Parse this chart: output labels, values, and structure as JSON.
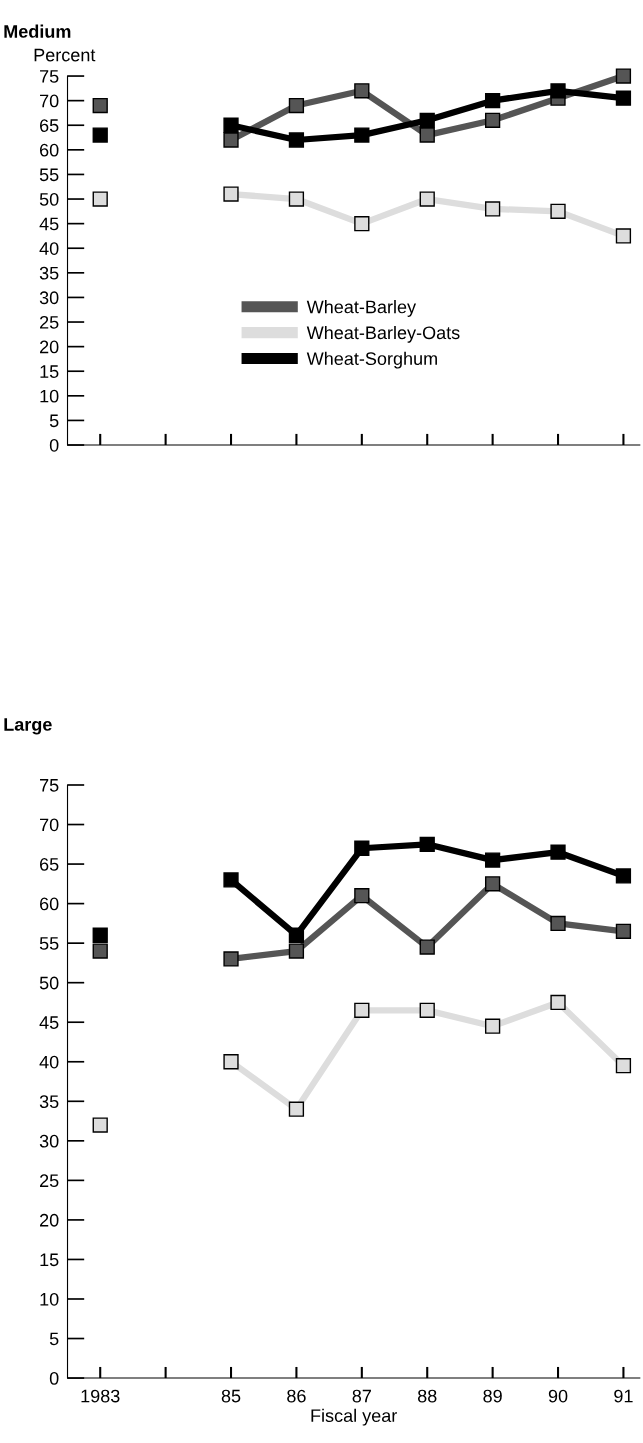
{
  "chart_data": [
    {
      "type": "line",
      "title": "Medium",
      "ylabel": "Percent",
      "x": [
        1983,
        1984,
        1985,
        1986,
        1987,
        1988,
        1989,
        1990,
        1991
      ],
      "xlim": [
        1982.5,
        1991.25
      ],
      "xticks": [
        {
          "value": 1983,
          "label": null
        },
        {
          "value": 1984,
          "label": null
        },
        {
          "value": 1985,
          "label": null
        },
        {
          "value": 1986,
          "label": null
        },
        {
          "value": 1987,
          "label": null
        },
        {
          "value": 1988,
          "label": null
        },
        {
          "value": 1989,
          "label": null
        },
        {
          "value": 1990,
          "label": null
        },
        {
          "value": 1991,
          "label": null
        }
      ],
      "ylim": [
        0,
        75
      ],
      "yticks": [
        0,
        5,
        10,
        15,
        20,
        25,
        30,
        35,
        40,
        45,
        50,
        55,
        60,
        65,
        70,
        75
      ],
      "tick_labels": "y",
      "grid": false,
      "legend": "center",
      "marker": "square",
      "line_style": "solid",
      "series": [
        {
          "name": "Wheat-Barley",
          "color": "#555555",
          "values": [
            69,
            null,
            62,
            69,
            72,
            63,
            66,
            70.5,
            75
          ]
        },
        {
          "name": "Wheat-Barley-Oats",
          "color": "#dddddd",
          "values": [
            50,
            null,
            51,
            50,
            45,
            50,
            48,
            47.5,
            42.5
          ]
        },
        {
          "name": "Wheat-Sorghum",
          "color": "#000000",
          "values": [
            63,
            null,
            65,
            62,
            63,
            66,
            70,
            72,
            70.5
          ]
        }
      ]
    },
    {
      "type": "line",
      "title": "Large",
      "xlabel": "Fiscal year",
      "x": [
        1983,
        1984,
        1985,
        1986,
        1987,
        1988,
        1989,
        1990,
        1991
      ],
      "xlim": [
        1982.5,
        1991.25
      ],
      "xticks": [
        {
          "value": 1983,
          "label": "1983"
        },
        {
          "value": 1984,
          "label": null
        },
        {
          "value": 1985,
          "label": "85"
        },
        {
          "value": 1986,
          "label": "86"
        },
        {
          "value": 1987,
          "label": "87"
        },
        {
          "value": 1988,
          "label": "88"
        },
        {
          "value": 1989,
          "label": "89"
        },
        {
          "value": 1990,
          "label": "90"
        },
        {
          "value": 1991,
          "label": "91"
        }
      ],
      "ylim": [
        0,
        75
      ],
      "yticks": [
        0,
        5,
        10,
        15,
        20,
        25,
        30,
        35,
        40,
        45,
        50,
        55,
        60,
        65,
        70,
        75
      ],
      "grid": false,
      "legend": false,
      "marker": "square",
      "line_style": "solid",
      "series": [
        {
          "color": "#555555",
          "values": [
            54,
            null,
            53,
            54,
            61,
            54.5,
            62.5,
            57.5,
            56.5
          ]
        },
        {
          "color": "#dddddd",
          "values": [
            32,
            null,
            40,
            34,
            46.5,
            46.5,
            44.5,
            47.5,
            39.5
          ]
        },
        {
          "color": "#000000",
          "values": [
            56,
            null,
            63,
            56,
            67,
            67.5,
            65.5,
            66.5,
            63.5
          ]
        }
      ]
    }
  ]
}
